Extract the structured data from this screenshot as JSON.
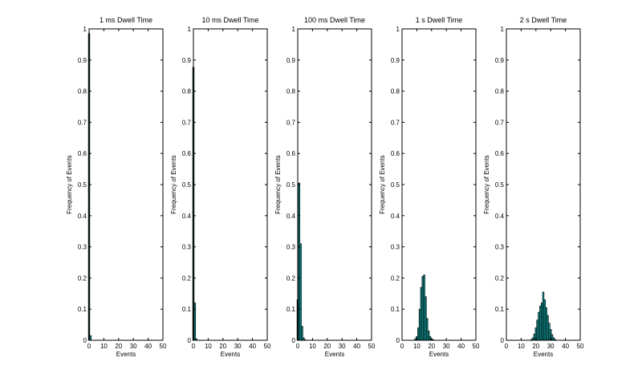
{
  "colors": {
    "bar_fill": "#0e8a8a",
    "bar_edge": "#000000",
    "axes": "#000000",
    "background": "#ffffff"
  },
  "chart_data": [
    {
      "type": "bar",
      "title": "1 ms Dwell Time",
      "xlabel": "Events",
      "ylabel": "Frequency of Events",
      "xlim": [
        0,
        50
      ],
      "ylim": [
        0,
        1
      ],
      "xticks": [
        "0",
        "10",
        "20",
        "30",
        "40",
        "50"
      ],
      "yticks": [
        "0",
        "0.1",
        "0.2",
        "0.3",
        "0.4",
        "0.5",
        "0.6",
        "0.7",
        "0.8",
        "0.9",
        "1"
      ],
      "x": [
        0,
        1
      ],
      "values": [
        0.985,
        0.015
      ]
    },
    {
      "type": "bar",
      "title": "10 ms Dwell Time",
      "xlabel": "Events",
      "ylabel": "Frequency of Events",
      "xlim": [
        0,
        50
      ],
      "ylim": [
        0,
        1
      ],
      "xticks": [
        "0",
        "10",
        "20",
        "30",
        "40",
        "50"
      ],
      "yticks": [
        "0",
        "0.1",
        "0.2",
        "0.3",
        "0.4",
        "0.5",
        "0.6",
        "0.7",
        "0.8",
        "0.9",
        "1"
      ],
      "x": [
        0,
        1,
        2
      ],
      "values": [
        0.877,
        0.12,
        0.005
      ]
    },
    {
      "type": "bar",
      "title": "100 ms Dwell Time",
      "xlabel": "Events",
      "ylabel": "Frequency of Events",
      "xlim": [
        0,
        50
      ],
      "ylim": [
        0,
        1
      ],
      "xticks": [
        "0",
        "10",
        "20",
        "30",
        "40",
        "50"
      ],
      "yticks": [
        "0",
        "0.1",
        "0.2",
        "0.3",
        "0.4",
        "0.5",
        "0.6",
        "0.7",
        "0.8",
        "0.9",
        "1"
      ],
      "x": [
        0,
        1,
        2,
        3,
        4,
        5
      ],
      "values": [
        0.13,
        0.505,
        0.31,
        0.045,
        0.008,
        0.002
      ]
    },
    {
      "type": "bar",
      "title": "1 s Dwell Time",
      "xlabel": "Events",
      "ylabel": "Frequency of Events",
      "xlim": [
        0,
        50
      ],
      "ylim": [
        0,
        1
      ],
      "xticks": [
        "0",
        "10",
        "20",
        "30",
        "40",
        "50"
      ],
      "yticks": [
        "0",
        "0.1",
        "0.2",
        "0.3",
        "0.4",
        "0.5",
        "0.6",
        "0.7",
        "0.8",
        "0.9",
        "1"
      ],
      "x": [
        9,
        10,
        11,
        12,
        13,
        14,
        15,
        16,
        17,
        18,
        19,
        20,
        21
      ],
      "values": [
        0.005,
        0.012,
        0.04,
        0.1,
        0.17,
        0.205,
        0.21,
        0.14,
        0.07,
        0.03,
        0.012,
        0.005,
        0.002
      ]
    },
    {
      "type": "bar",
      "title": "2 s Dwell Time",
      "xlabel": "Events",
      "ylabel": "Frequency of Events",
      "xlim": [
        0,
        50
      ],
      "ylim": [
        0,
        1
      ],
      "xticks": [
        "0",
        "10",
        "20",
        "30",
        "40",
        "50"
      ],
      "yticks": [
        "0",
        "0.1",
        "0.2",
        "0.3",
        "0.4",
        "0.5",
        "0.6",
        "0.7",
        "0.8",
        "0.9",
        "1"
      ],
      "x": [
        17,
        18,
        19,
        20,
        21,
        22,
        23,
        24,
        25,
        26,
        27,
        28,
        29,
        30,
        31,
        32,
        33
      ],
      "values": [
        0.003,
        0.008,
        0.02,
        0.04,
        0.065,
        0.09,
        0.11,
        0.12,
        0.155,
        0.13,
        0.105,
        0.08,
        0.055,
        0.035,
        0.018,
        0.008,
        0.003
      ]
    }
  ]
}
